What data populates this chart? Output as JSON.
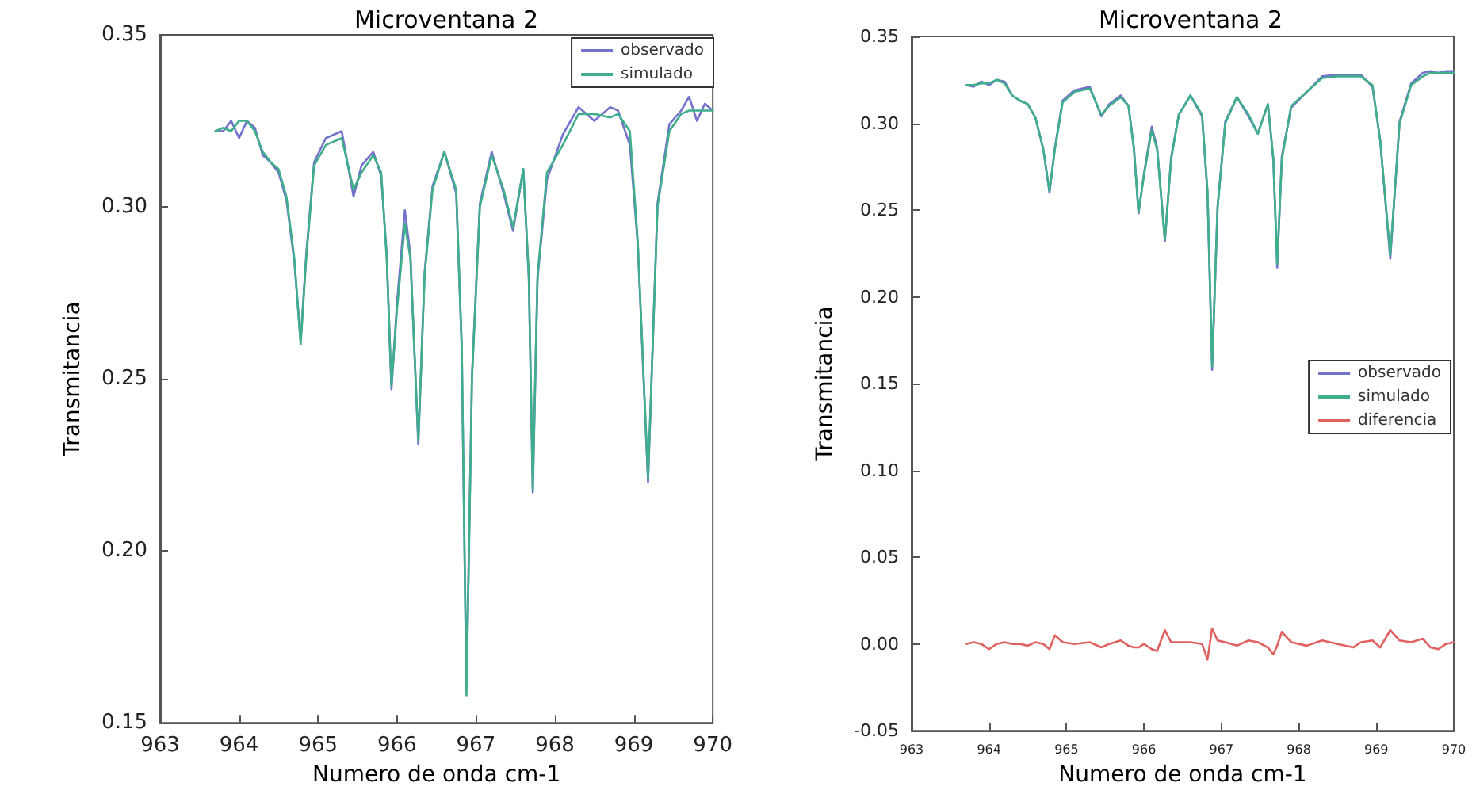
{
  "chart_data": [
    {
      "type": "line",
      "title": "Microventana 2",
      "xlabel": "Numero de onda cm-1",
      "ylabel": "Transmitancia",
      "legend": "top right",
      "grid": false,
      "xlim": [
        963,
        970
      ],
      "xticks": [
        963,
        964,
        965,
        966,
        967,
        968,
        969,
        970
      ],
      "ylim": [
        0.15,
        0.35
      ],
      "yticks": [
        {
          "value": 0.15,
          "label": "0.15"
        },
        {
          "value": 0.2,
          "label": "0.20"
        },
        {
          "value": 0.25,
          "label": "0.25"
        },
        {
          "value": 0.3,
          "label": "0.30"
        },
        {
          "value": 0.35,
          "label": "0.35"
        }
      ],
      "x": [
        963.7,
        963.8,
        963.9,
        964.0,
        964.1,
        964.2,
        964.3,
        964.4,
        964.5,
        964.6,
        964.7,
        964.78,
        964.85,
        964.95,
        965.1,
        965.3,
        965.45,
        965.55,
        965.7,
        965.8,
        965.87,
        965.93,
        966.0,
        966.1,
        966.17,
        966.27,
        966.35,
        966.45,
        966.6,
        966.75,
        966.82,
        966.88,
        966.95,
        967.05,
        967.2,
        967.35,
        967.47,
        967.6,
        967.67,
        967.72,
        967.78,
        967.9,
        968.1,
        968.3,
        968.5,
        968.7,
        968.8,
        968.95,
        969.05,
        969.18,
        969.3,
        969.45,
        969.6,
        969.7,
        969.8,
        969.9,
        970.0
      ],
      "series": [
        {
          "name": "observado",
          "color": "#7272cc",
          "values": [
            0.322,
            0.322,
            0.325,
            0.32,
            0.325,
            0.323,
            0.315,
            0.313,
            0.31,
            0.302,
            0.284,
            0.261,
            0.286,
            0.313,
            0.32,
            0.322,
            0.303,
            0.312,
            0.316,
            0.309,
            0.286,
            0.247,
            0.272,
            0.299,
            0.286,
            0.231,
            0.281,
            0.306,
            0.316,
            0.304,
            0.259,
            0.16,
            0.251,
            0.301,
            0.316,
            0.304,
            0.293,
            0.311,
            0.279,
            0.217,
            0.279,
            0.308,
            0.321,
            0.329,
            0.325,
            0.329,
            0.328,
            0.318,
            0.289,
            0.22,
            0.301,
            0.324,
            0.328,
            0.332,
            0.325,
            0.33,
            0.328
          ]
        },
        {
          "name": "simulado",
          "color": "#3fae8c",
          "values": [
            0.322,
            0.323,
            0.322,
            0.325,
            0.325,
            0.322,
            0.316,
            0.313,
            0.311,
            0.303,
            0.285,
            0.26,
            0.285,
            0.312,
            0.318,
            0.32,
            0.305,
            0.31,
            0.315,
            0.31,
            0.285,
            0.248,
            0.27,
            0.295,
            0.285,
            0.232,
            0.28,
            0.305,
            0.316,
            0.305,
            0.26,
            0.158,
            0.25,
            0.3,
            0.315,
            0.305,
            0.294,
            0.311,
            0.28,
            0.218,
            0.28,
            0.31,
            0.318,
            0.327,
            0.327,
            0.326,
            0.327,
            0.322,
            0.29,
            0.221,
            0.3,
            0.322,
            0.327,
            0.328,
            0.328,
            0.328,
            0.328
          ]
        }
      ]
    },
    {
      "type": "line",
      "title": "Microventana 2",
      "xlabel": "Numero de onda cm-1",
      "ylabel": "Transmitancia",
      "legend": "right",
      "grid": false,
      "xlim": [
        963,
        970
      ],
      "xticks": [
        963,
        964,
        965,
        966,
        967,
        968,
        969,
        970
      ],
      "ylim": [
        -0.05,
        0.35
      ],
      "yticks": [
        {
          "value": -0.05,
          "label": "-0.05"
        },
        {
          "value": 0,
          "label": "0.00"
        },
        {
          "value": 0.05,
          "label": "0.05"
        },
        {
          "value": 0.1,
          "label": "0.10"
        },
        {
          "value": 0.15,
          "label": "0.15"
        },
        {
          "value": 0.2,
          "label": "0.20"
        },
        {
          "value": 0.25,
          "label": "0.25"
        },
        {
          "value": 0.3,
          "label": "0.30"
        },
        {
          "value": 0.35,
          "label": "0.35"
        }
      ],
      "x": [
        963.7,
        963.8,
        963.9,
        964.0,
        964.1,
        964.2,
        964.3,
        964.4,
        964.5,
        964.6,
        964.7,
        964.78,
        964.85,
        964.95,
        965.1,
        965.3,
        965.45,
        965.55,
        965.7,
        965.8,
        965.87,
        965.93,
        966.0,
        966.1,
        966.17,
        966.27,
        966.35,
        966.45,
        966.6,
        966.75,
        966.82,
        966.88,
        966.95,
        967.05,
        967.2,
        967.35,
        967.47,
        967.6,
        967.67,
        967.72,
        967.78,
        967.9,
        968.1,
        968.3,
        968.5,
        968.7,
        968.8,
        968.95,
        969.05,
        969.18,
        969.3,
        969.45,
        969.6,
        969.7,
        969.8,
        969.9,
        970.0
      ],
      "series": [
        {
          "name": "observado",
          "color": "#7272cc",
          "values": [
            0.322,
            0.321,
            0.324,
            0.322,
            0.325,
            0.324,
            0.316,
            0.313,
            0.311,
            0.303,
            0.285,
            0.26,
            0.286,
            0.313,
            0.319,
            0.321,
            0.304,
            0.311,
            0.316,
            0.31,
            0.286,
            0.248,
            0.271,
            0.298,
            0.286,
            0.232,
            0.28,
            0.305,
            0.316,
            0.304,
            0.26,
            0.158,
            0.252,
            0.301,
            0.315,
            0.304,
            0.294,
            0.311,
            0.279,
            0.217,
            0.281,
            0.309,
            0.318,
            0.327,
            0.328,
            0.328,
            0.328,
            0.321,
            0.29,
            0.222,
            0.301,
            0.323,
            0.329,
            0.33,
            0.329,
            0.33,
            0.33
          ]
        },
        {
          "name": "simulado",
          "color": "#3fae8c",
          "values": [
            0.322,
            0.322,
            0.323,
            0.323,
            0.325,
            0.323,
            0.316,
            0.313,
            0.311,
            0.303,
            0.285,
            0.261,
            0.285,
            0.312,
            0.318,
            0.32,
            0.305,
            0.31,
            0.315,
            0.31,
            0.285,
            0.249,
            0.27,
            0.296,
            0.285,
            0.233,
            0.279,
            0.305,
            0.316,
            0.305,
            0.261,
            0.16,
            0.251,
            0.3,
            0.315,
            0.305,
            0.294,
            0.311,
            0.28,
            0.219,
            0.279,
            0.31,
            0.318,
            0.326,
            0.327,
            0.327,
            0.327,
            0.322,
            0.29,
            0.224,
            0.3,
            0.322,
            0.327,
            0.329,
            0.329,
            0.329,
            0.329
          ]
        },
        {
          "name": "diferencia",
          "color": "#e06060",
          "values": [
            0.0,
            0.001,
            0.0,
            -0.003,
            0.0,
            0.001,
            0.0,
            0.0,
            -0.001,
            0.001,
            0.0,
            -0.003,
            0.005,
            0.001,
            0.0,
            0.001,
            -0.002,
            0.0,
            0.002,
            -0.001,
            -0.002,
            -0.002,
            0.0,
            -0.003,
            -0.004,
            0.008,
            0.001,
            0.001,
            0.001,
            0.0,
            -0.009,
            0.009,
            0.002,
            0.001,
            -0.001,
            0.002,
            0.001,
            -0.002,
            -0.006,
            -0.001,
            0.007,
            0.001,
            -0.001,
            0.002,
            0.0,
            -0.002,
            0.001,
            0.002,
            -0.002,
            0.008,
            0.002,
            0.001,
            0.003,
            -0.002,
            -0.003,
            0.0,
            0.001
          ]
        }
      ]
    }
  ]
}
